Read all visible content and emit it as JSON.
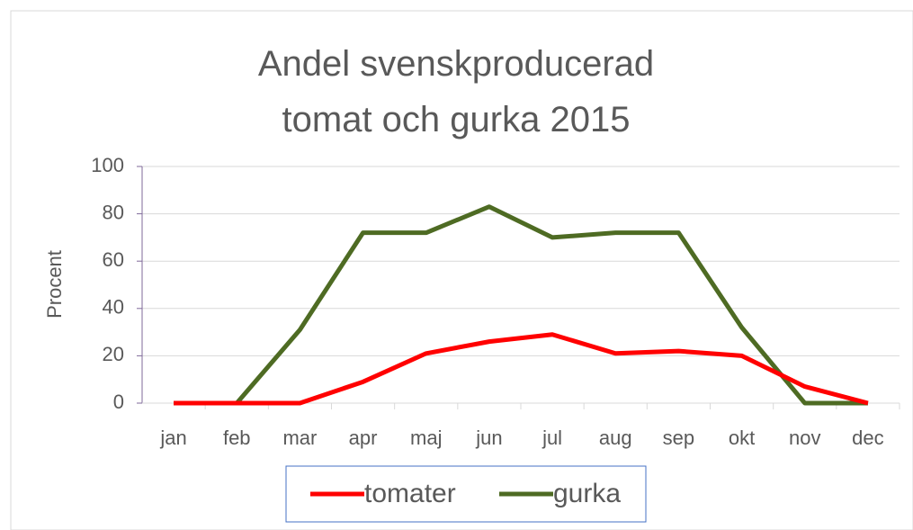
{
  "chart_data": {
    "type": "line",
    "title": "Andel svenskproducerad tomat och gurka 2015",
    "y_label": "Procent",
    "categories": [
      "jan",
      "feb",
      "mar",
      "apr",
      "maj",
      "jun",
      "jul",
      "aug",
      "sep",
      "okt",
      "nov",
      "dec"
    ],
    "series": [
      {
        "name": "tomater",
        "color": "#ff0000",
        "values": [
          0,
          0,
          0,
          9,
          21,
          26,
          29,
          21,
          22,
          20,
          7,
          0
        ]
      },
      {
        "name": "gurka",
        "color": "#4e6b23",
        "values": [
          0,
          0,
          31,
          72,
          72,
          83,
          70,
          72,
          72,
          32,
          0,
          0
        ]
      }
    ],
    "ylim": [
      0,
      100
    ],
    "yticks": [
      0,
      20,
      40,
      60,
      80,
      100
    ],
    "grid": true,
    "legend": "bottom"
  }
}
